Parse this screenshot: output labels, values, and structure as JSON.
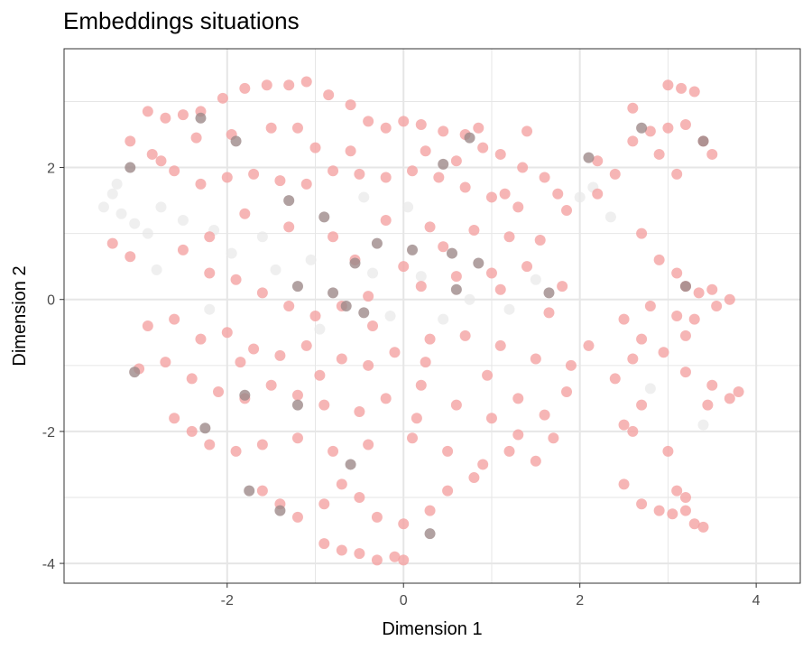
{
  "chart_data": {
    "type": "scatter",
    "title": "Embeddings situations",
    "xlabel": "Dimension 1",
    "ylabel": "Dimension 2",
    "xlim": [
      -3.85,
      4.5
    ],
    "ylim": [
      -4.3,
      3.8
    ],
    "x_ticks": [
      -2,
      0,
      2,
      4
    ],
    "y_ticks": [
      -4,
      -2,
      0,
      2
    ],
    "x_tick_labels": [
      "-2",
      "0",
      "2",
      "4"
    ],
    "y_tick_labels": [
      "-4",
      "-2",
      "0",
      "2"
    ],
    "grid": true,
    "legend": "none",
    "colors": {
      "point_main": "#f4a3a3",
      "point_dark": "#9e8a8a",
      "point_faint": "#e8e8e8",
      "grid": "#e6e6e6",
      "panel_border": "#333333"
    },
    "series": [
      {
        "color": "#f4a3a3",
        "points": [
          [
            -2.9,
            2.85
          ],
          [
            -2.7,
            2.75
          ],
          [
            -2.5,
            2.8
          ],
          [
            -2.3,
            2.85
          ],
          [
            -2.05,
            3.05
          ],
          [
            -1.8,
            3.2
          ],
          [
            -1.55,
            3.25
          ],
          [
            -1.3,
            3.25
          ],
          [
            -1.1,
            3.3
          ],
          [
            -0.85,
            3.1
          ],
          [
            -0.6,
            2.95
          ],
          [
            -0.4,
            2.7
          ],
          [
            -0.2,
            2.6
          ],
          [
            0.0,
            2.7
          ],
          [
            0.2,
            2.65
          ],
          [
            0.45,
            2.55
          ],
          [
            0.7,
            2.5
          ],
          [
            0.9,
            2.3
          ],
          [
            1.1,
            2.2
          ],
          [
            1.35,
            2.0
          ],
          [
            1.6,
            1.85
          ],
          [
            1.75,
            1.6
          ],
          [
            1.85,
            1.35
          ],
          [
            -3.1,
            2.4
          ],
          [
            -2.85,
            2.2
          ],
          [
            -2.6,
            1.95
          ],
          [
            -2.3,
            1.75
          ],
          [
            -2.0,
            1.85
          ],
          [
            -1.7,
            1.9
          ],
          [
            -1.4,
            1.8
          ],
          [
            -1.1,
            1.75
          ],
          [
            -0.8,
            1.95
          ],
          [
            -0.5,
            1.9
          ],
          [
            -0.2,
            1.85
          ],
          [
            0.1,
            1.95
          ],
          [
            0.4,
            1.85
          ],
          [
            0.7,
            1.7
          ],
          [
            1.0,
            1.55
          ],
          [
            1.3,
            1.4
          ],
          [
            -1.8,
            1.3
          ],
          [
            -1.3,
            1.1
          ],
          [
            -0.8,
            0.95
          ],
          [
            -0.2,
            1.2
          ],
          [
            0.3,
            1.1
          ],
          [
            0.8,
            1.05
          ],
          [
            1.2,
            0.95
          ],
          [
            1.55,
            0.9
          ],
          [
            -2.5,
            0.75
          ],
          [
            -2.2,
            0.4
          ],
          [
            -1.9,
            0.3
          ],
          [
            -1.6,
            0.1
          ],
          [
            -1.3,
            -0.1
          ],
          [
            -1.0,
            -0.25
          ],
          [
            -0.7,
            -0.1
          ],
          [
            -0.4,
            0.05
          ],
          [
            0.2,
            0.2
          ],
          [
            0.6,
            0.35
          ],
          [
            1.0,
            0.4
          ],
          [
            1.4,
            0.5
          ],
          [
            1.8,
            0.2
          ],
          [
            -2.6,
            -0.3
          ],
          [
            -2.3,
            -0.6
          ],
          [
            -2.0,
            -0.5
          ],
          [
            -1.7,
            -0.75
          ],
          [
            -1.4,
            -0.85
          ],
          [
            -1.1,
            -0.7
          ],
          [
            -0.7,
            -0.9
          ],
          [
            -0.4,
            -1.0
          ],
          [
            -0.1,
            -0.8
          ],
          [
            0.3,
            -0.6
          ],
          [
            0.7,
            -0.55
          ],
          [
            1.1,
            -0.7
          ],
          [
            1.5,
            -0.9
          ],
          [
            1.9,
            -1.0
          ],
          [
            -3.0,
            -1.05
          ],
          [
            -2.7,
            -0.95
          ],
          [
            -2.4,
            -1.2
          ],
          [
            -2.1,
            -1.4
          ],
          [
            -1.8,
            -1.5
          ],
          [
            -1.5,
            -1.3
          ],
          [
            -1.2,
            -1.45
          ],
          [
            -0.9,
            -1.6
          ],
          [
            -0.5,
            -1.7
          ],
          [
            -0.2,
            -1.5
          ],
          [
            0.2,
            -1.3
          ],
          [
            0.6,
            -1.6
          ],
          [
            1.0,
            -1.8
          ],
          [
            1.3,
            -1.5
          ],
          [
            1.6,
            -1.75
          ],
          [
            -2.6,
            -1.8
          ],
          [
            -2.4,
            -2.0
          ],
          [
            -2.2,
            -2.2
          ],
          [
            -1.9,
            -2.3
          ],
          [
            -1.6,
            -2.2
          ],
          [
            -1.2,
            -2.1
          ],
          [
            -0.8,
            -2.3
          ],
          [
            -0.4,
            -2.2
          ],
          [
            0.1,
            -2.1
          ],
          [
            0.5,
            -2.3
          ],
          [
            0.9,
            -2.5
          ],
          [
            1.2,
            -2.3
          ],
          [
            1.5,
            -2.45
          ],
          [
            1.7,
            -2.1
          ],
          [
            -1.6,
            -2.9
          ],
          [
            -1.4,
            -3.1
          ],
          [
            -1.2,
            -3.3
          ],
          [
            -0.9,
            -3.1
          ],
          [
            -0.7,
            -2.8
          ],
          [
            -0.5,
            -3.0
          ],
          [
            -0.3,
            -3.3
          ],
          [
            0.0,
            -3.4
          ],
          [
            0.3,
            -3.2
          ],
          [
            0.5,
            -2.9
          ],
          [
            0.8,
            -2.7
          ],
          [
            -0.9,
            -3.7
          ],
          [
            -0.7,
            -3.8
          ],
          [
            -0.5,
            -3.85
          ],
          [
            -0.3,
            -3.95
          ],
          [
            -0.1,
            -3.9
          ],
          [
            0.0,
            -3.95
          ],
          [
            2.2,
            2.1
          ],
          [
            2.4,
            1.9
          ],
          [
            2.6,
            2.4
          ],
          [
            2.8,
            2.55
          ],
          [
            3.0,
            2.6
          ],
          [
            3.2,
            2.65
          ],
          [
            3.4,
            2.4
          ],
          [
            3.5,
            2.2
          ],
          [
            2.9,
            2.2
          ],
          [
            3.1,
            1.9
          ],
          [
            2.6,
            2.9
          ],
          [
            3.0,
            3.25
          ],
          [
            3.15,
            3.2
          ],
          [
            3.3,
            3.15
          ],
          [
            2.2,
            1.6
          ],
          [
            2.7,
            1.0
          ],
          [
            2.9,
            0.6
          ],
          [
            3.1,
            0.4
          ],
          [
            3.2,
            0.2
          ],
          [
            3.35,
            0.1
          ],
          [
            3.5,
            0.15
          ],
          [
            3.7,
            0.0
          ],
          [
            3.55,
            -0.1
          ],
          [
            3.3,
            -0.3
          ],
          [
            3.1,
            -0.25
          ],
          [
            2.8,
            -0.1
          ],
          [
            2.5,
            -0.3
          ],
          [
            2.7,
            -0.6
          ],
          [
            2.95,
            -0.8
          ],
          [
            3.2,
            -0.55
          ],
          [
            2.6,
            -0.9
          ],
          [
            2.4,
            -1.2
          ],
          [
            2.7,
            -1.6
          ],
          [
            2.5,
            -1.9
          ],
          [
            3.2,
            -1.1
          ],
          [
            3.5,
            -1.3
          ],
          [
            3.7,
            -1.5
          ],
          [
            3.8,
            -1.4
          ],
          [
            3.45,
            -1.6
          ],
          [
            2.6,
            -2.0
          ],
          [
            2.5,
            -2.8
          ],
          [
            2.7,
            -3.1
          ],
          [
            2.9,
            -3.2
          ],
          [
            3.05,
            -3.25
          ],
          [
            3.2,
            -3.2
          ],
          [
            3.3,
            -3.4
          ],
          [
            3.4,
            -3.45
          ],
          [
            3.1,
            -2.9
          ],
          [
            3.2,
            -3.0
          ],
          [
            3.0,
            -2.3
          ],
          [
            -3.3,
            0.85
          ],
          [
            -3.1,
            0.65
          ],
          [
            -2.75,
            2.1
          ],
          [
            -1.0,
            2.3
          ],
          [
            -0.6,
            2.25
          ],
          [
            0.25,
            2.25
          ],
          [
            0.6,
            2.1
          ],
          [
            1.15,
            1.6
          ],
          [
            -2.2,
            0.95
          ],
          [
            -0.55,
            0.6
          ],
          [
            0.0,
            0.5
          ],
          [
            0.45,
            0.8
          ],
          [
            1.1,
            0.15
          ],
          [
            1.65,
            -0.2
          ],
          [
            -0.35,
            -0.4
          ],
          [
            0.95,
            -1.15
          ],
          [
            -1.85,
            -0.95
          ],
          [
            2.1,
            -0.7
          ],
          [
            1.85,
            -1.4
          ],
          [
            -2.9,
            -0.4
          ],
          [
            -1.95,
            2.5
          ],
          [
            -1.5,
            2.6
          ],
          [
            -1.2,
            2.6
          ],
          [
            -2.35,
            2.45
          ],
          [
            0.85,
            2.6
          ],
          [
            1.4,
            2.55
          ],
          [
            -0.95,
            -1.15
          ],
          [
            0.25,
            -0.95
          ],
          [
            0.15,
            -1.8
          ],
          [
            1.3,
            -2.05
          ]
        ]
      },
      {
        "color": "#9e8a8a",
        "points": [
          [
            -3.1,
            2.0
          ],
          [
            -2.3,
            2.75
          ],
          [
            -1.9,
            2.4
          ],
          [
            -1.3,
            1.5
          ],
          [
            -0.9,
            1.25
          ],
          [
            -0.3,
            0.85
          ],
          [
            -0.55,
            0.55
          ],
          [
            0.1,
            0.75
          ],
          [
            0.55,
            0.7
          ],
          [
            0.85,
            0.55
          ],
          [
            -1.2,
            0.2
          ],
          [
            -0.8,
            0.1
          ],
          [
            -0.65,
            -0.1
          ],
          [
            -0.45,
            -0.2
          ],
          [
            0.6,
            0.15
          ],
          [
            1.65,
            0.1
          ],
          [
            -1.8,
            -1.45
          ],
          [
            -1.2,
            -1.6
          ],
          [
            -1.75,
            -2.9
          ],
          [
            -1.4,
            -3.2
          ],
          [
            -0.6,
            -2.5
          ],
          [
            0.3,
            -3.55
          ],
          [
            2.1,
            2.15
          ],
          [
            2.7,
            2.6
          ],
          [
            3.4,
            2.4
          ],
          [
            3.2,
            0.2
          ],
          [
            -3.05,
            -1.1
          ],
          [
            -2.25,
            -1.95
          ],
          [
            0.75,
            2.45
          ],
          [
            0.45,
            2.05
          ]
        ]
      },
      {
        "color": "#e8e8e8",
        "points": [
          [
            -3.4,
            1.4
          ],
          [
            -3.3,
            1.6
          ],
          [
            -3.2,
            1.3
          ],
          [
            -3.05,
            1.15
          ],
          [
            -2.9,
            1.0
          ],
          [
            -3.25,
            1.75
          ],
          [
            -2.75,
            1.4
          ],
          [
            -2.5,
            1.2
          ],
          [
            -2.15,
            1.05
          ],
          [
            -1.6,
            0.95
          ],
          [
            -1.05,
            0.6
          ],
          [
            -0.35,
            0.4
          ],
          [
            0.2,
            0.35
          ],
          [
            0.75,
            0.0
          ],
          [
            1.2,
            -0.15
          ],
          [
            1.5,
            0.3
          ],
          [
            -1.95,
            0.7
          ],
          [
            -2.8,
            0.45
          ],
          [
            -0.95,
            -0.45
          ],
          [
            -0.15,
            -0.25
          ],
          [
            0.45,
            -0.3
          ],
          [
            -2.2,
            -0.15
          ],
          [
            -1.45,
            0.45
          ],
          [
            2.15,
            1.7
          ],
          [
            2.0,
            1.55
          ],
          [
            2.35,
            1.25
          ],
          [
            3.4,
            -1.9
          ],
          [
            2.8,
            -1.35
          ],
          [
            -0.45,
            1.55
          ],
          [
            0.05,
            1.4
          ]
        ]
      }
    ]
  }
}
